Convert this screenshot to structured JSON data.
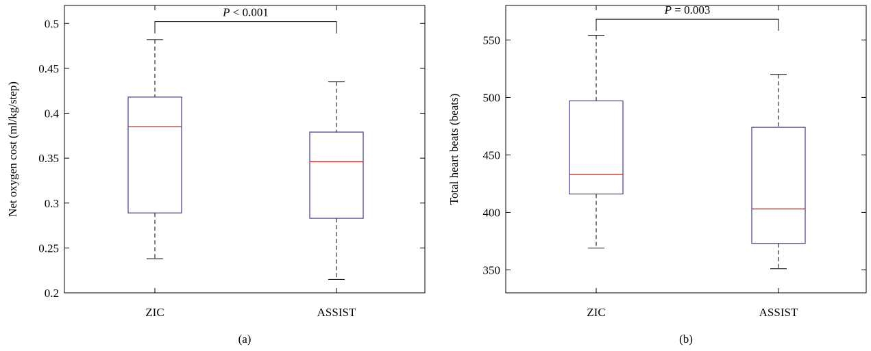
{
  "colors": {
    "box": "#3a3a9a",
    "median": "#d03020",
    "whisker": "#000000"
  },
  "chart_data": [
    {
      "type": "box",
      "panel_label": "(a)",
      "title": "",
      "xlabel": "",
      "ylabel": "Net oxygen cost (ml/kg/step)",
      "ylim": [
        0.2,
        0.52
      ],
      "yticks": [
        0.2,
        0.25,
        0.3,
        0.35,
        0.4,
        0.45,
        0.5
      ],
      "ytick_labels": [
        "0.2",
        "0.25",
        "0.3",
        "0.35",
        "0.4",
        "0.45",
        "0.5"
      ],
      "grid": false,
      "categories": [
        "ZIC",
        "ASSIST"
      ],
      "boxes": [
        {
          "category": "ZIC",
          "min": 0.238,
          "q1": 0.289,
          "median": 0.385,
          "q3": 0.418,
          "max": 0.482
        },
        {
          "category": "ASSIST",
          "min": 0.215,
          "q1": 0.283,
          "median": 0.346,
          "q3": 0.379,
          "max": 0.435
        }
      ],
      "significance": {
        "p_symbol": "P",
        "relation": " < ",
        "p_value": "0.001",
        "y_level": 0.502,
        "drop_to": 0.489
      }
    },
    {
      "type": "box",
      "panel_label": "(b)",
      "title": "",
      "xlabel": "",
      "ylabel": "Total heart beats (beats)",
      "ylim": [
        330,
        580
      ],
      "yticks": [
        350,
        400,
        450,
        500,
        550
      ],
      "ytick_labels": [
        "350",
        "400",
        "450",
        "500",
        "550"
      ],
      "grid": false,
      "categories": [
        "ZIC",
        "ASSIST"
      ],
      "boxes": [
        {
          "category": "ZIC",
          "min": 369,
          "q1": 416,
          "median": 433,
          "q3": 497,
          "max": 554
        },
        {
          "category": "ASSIST",
          "min": 351,
          "q1": 373,
          "median": 403,
          "q3": 474,
          "max": 520
        }
      ],
      "significance": {
        "p_symbol": "P",
        "relation": " = ",
        "p_value": "0.003",
        "y_level": 568,
        "drop_to": 558
      }
    }
  ]
}
